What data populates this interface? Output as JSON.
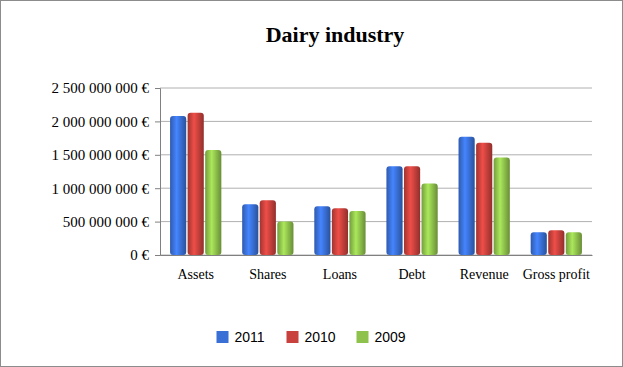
{
  "chart_data": {
    "type": "bar",
    "title": "Dairy industry",
    "categories": [
      "Assets",
      "Shares",
      "Loans",
      "Debt",
      "Revenue",
      "Gross profit"
    ],
    "series": [
      {
        "name": "2011",
        "color": "#3a6fd6",
        "values": [
          2080000000,
          760000000,
          730000000,
          1330000000,
          1770000000,
          340000000
        ]
      },
      {
        "name": "2010",
        "color": "#c8413c",
        "values": [
          2130000000,
          820000000,
          700000000,
          1330000000,
          1680000000,
          370000000
        ]
      },
      {
        "name": "2009",
        "color": "#8fc24c",
        "values": [
          1570000000,
          500000000,
          660000000,
          1070000000,
          1460000000,
          340000000
        ]
      }
    ],
    "ylim": [
      0,
      2500000000
    ],
    "yticks": [
      {
        "value": 0,
        "label": "0 €"
      },
      {
        "value": 500000000,
        "label": "500 000 000 €"
      },
      {
        "value": 1000000000,
        "label": "1 000 000 000 €"
      },
      {
        "value": 1500000000,
        "label": "1 500 000 000 €"
      },
      {
        "value": 2000000000,
        "label": "2 000 000 000 €"
      },
      {
        "value": 2500000000,
        "label": "2 500 000 000 €"
      }
    ],
    "grid": true,
    "legend": "bottom"
  }
}
